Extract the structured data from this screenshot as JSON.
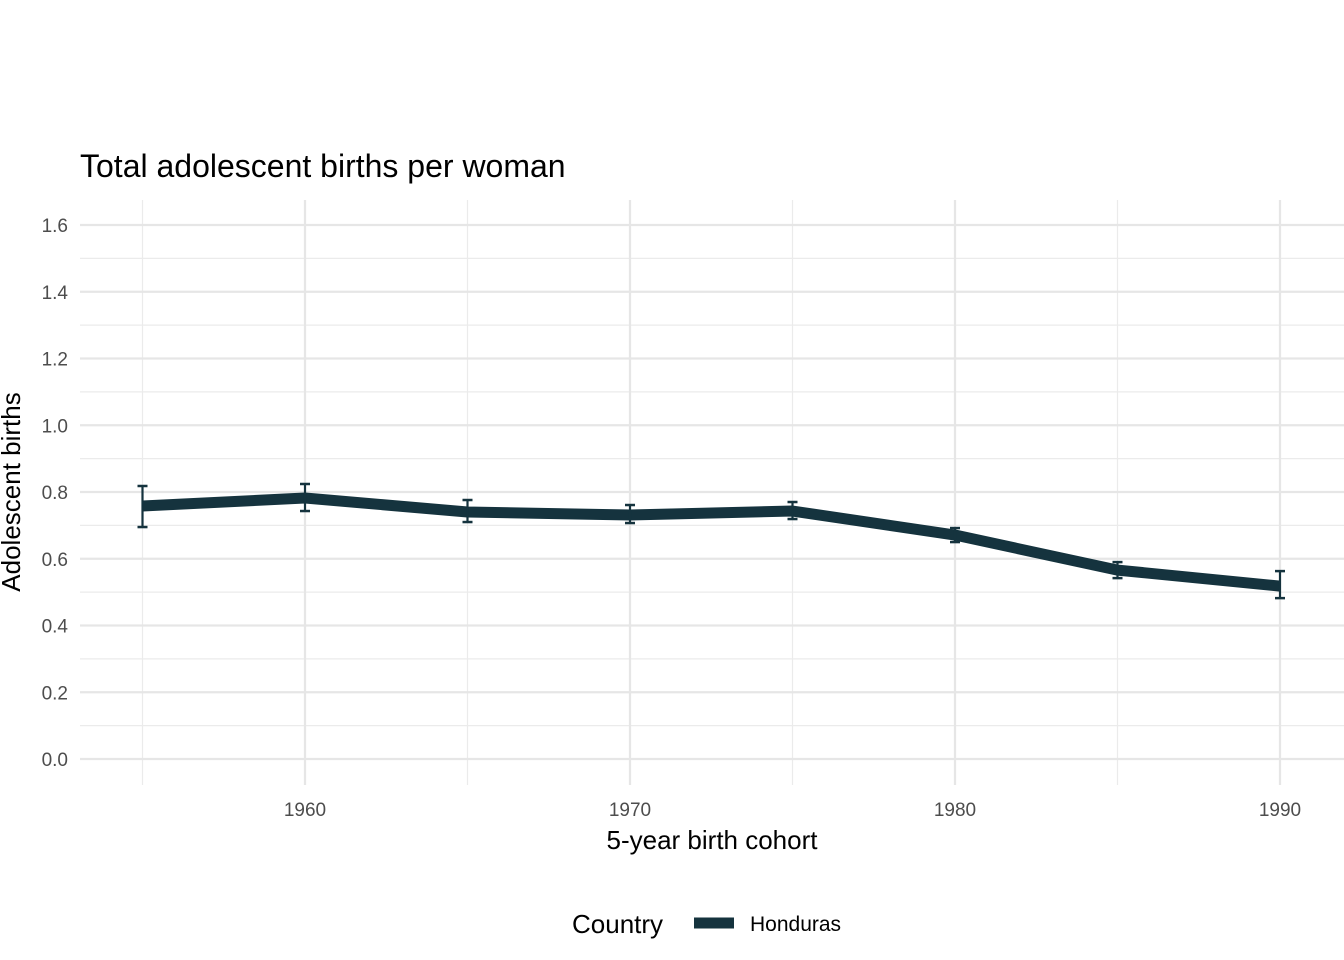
{
  "chart_data": {
    "type": "line",
    "title": "Total adolescent births per woman",
    "xlabel": "5-year birth cohort",
    "ylabel": "Adolescent births",
    "ylim": [
      0,
      1.6
    ],
    "xlim": [
      1955,
      1990
    ],
    "y_ticks": [
      "0.0",
      "0.2",
      "0.4",
      "0.6",
      "0.8",
      "1.0",
      "1.2",
      "1.4",
      "1.6"
    ],
    "x_ticks": [
      "1960",
      "1970",
      "1980",
      "1990"
    ],
    "grid": true,
    "legend": {
      "title": "Country",
      "position": "bottom",
      "entries": [
        "Honduras"
      ]
    },
    "series": [
      {
        "name": "Honduras",
        "color": "#15333e",
        "x": [
          1955,
          1960,
          1965,
          1970,
          1975,
          1980,
          1985,
          1990
        ],
        "values": [
          0.758,
          0.782,
          0.74,
          0.731,
          0.743,
          0.671,
          0.566,
          0.518
        ],
        "lower": [
          0.695,
          0.743,
          0.71,
          0.707,
          0.719,
          0.65,
          0.542,
          0.482
        ],
        "upper": [
          0.818,
          0.824,
          0.776,
          0.761,
          0.77,
          0.692,
          0.59,
          0.563
        ]
      }
    ]
  }
}
